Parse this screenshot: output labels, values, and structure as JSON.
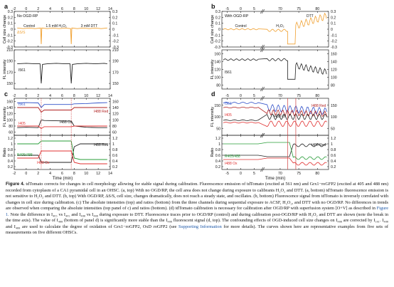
{
  "chart_data": [
    {
      "panel": "a",
      "type": "line",
      "title": "No OGD-RP",
      "ylabel": "Cell size change",
      "x_ticks": [
        -2,
        0,
        2,
        4,
        6,
        8,
        10,
        12,
        14
      ],
      "xlim": [
        -2,
        14
      ],
      "y_ticks": [
        -0.3,
        -0.2,
        -0.1,
        0.0,
        0.1,
        0.2,
        0.3
      ],
      "ylim": [
        -0.3,
        0.3
      ],
      "annotations": [
        "Control",
        "1.5 mM H₂O₂",
        "3 mM DTT"
      ],
      "series": [
        {
          "name": "ΔS/S",
          "color": "#f0a030",
          "x": [
            -1.5,
            -0.5,
            0.5,
            1.5,
            2.4,
            2.5,
            2.6,
            3.5,
            4.5,
            5.5,
            6.5,
            7.4,
            7.5,
            7.6,
            8.5,
            9.5,
            10.5,
            11.5,
            12.5,
            13.5
          ],
          "y": [
            0.02,
            0.01,
            0.02,
            0.01,
            0.02,
            -0.25,
            0.02,
            0.01,
            0.02,
            0.01,
            0.02,
            0.01,
            -0.25,
            0.02,
            0.01,
            0.02,
            0.01,
            0.02,
            0.01,
            0.02
          ]
        }
      ]
    },
    {
      "panel": "a-bottom",
      "type": "line",
      "ylabel": "FL intensity",
      "x_ticks": [
        -2,
        0,
        2,
        4,
        6,
        8,
        10,
        12,
        14
      ],
      "xlim": [
        -2,
        14
      ],
      "y_ticks": [
        150,
        170,
        190,
        210
      ],
      "ylim": [
        140,
        210
      ],
      "series": [
        {
          "name": "I561",
          "color": "#222222",
          "x": [
            -1.5,
            0,
            1.5,
            2.3,
            2.5,
            2.7,
            3.5,
            5,
            6.5,
            7.3,
            7.5,
            7.7,
            8.5,
            10,
            11.5,
            13,
            13.5
          ],
          "y": [
            185,
            186,
            185,
            185,
            150,
            184,
            185,
            186,
            185,
            185,
            150,
            184,
            185,
            186,
            185,
            186,
            185
          ]
        }
      ]
    },
    {
      "panel": "c",
      "type": "line",
      "ylabel": "FL intensity",
      "x_ticks": [
        -2,
        0,
        2,
        4,
        6,
        8,
        10,
        12,
        14
      ],
      "xlim": [
        -2,
        14
      ],
      "y_ticks": [
        60,
        80,
        100,
        120,
        140,
        160
      ],
      "ylim": [
        50,
        170
      ],
      "series": [
        {
          "name": "I561",
          "color": "#3050c8",
          "x": [
            -1.5,
            0,
            2,
            2.5,
            3,
            5,
            7.5,
            8,
            10,
            12,
            13.5
          ],
          "y": [
            155,
            156,
            155,
            140,
            150,
            150,
            150,
            152,
            153,
            155,
            156
          ]
        },
        {
          "name": "I488 Red",
          "color": "#b02020",
          "x": [
            -1.5,
            0,
            2,
            2.5,
            3,
            5,
            7.5,
            8,
            10,
            12,
            13.5
          ],
          "y": [
            140,
            140,
            140,
            125,
            132,
            132,
            132,
            140,
            140,
            140,
            140
          ]
        },
        {
          "name": "I488 Ox",
          "color": "#222222",
          "x": [
            -1.5,
            0,
            2,
            2.5,
            3,
            5,
            7.5,
            8,
            10,
            12,
            13.5
          ],
          "y": [
            75,
            76,
            75,
            100,
            98,
            97,
            96,
            80,
            76,
            75,
            75
          ]
        },
        {
          "name": "I405",
          "color": "#e03030",
          "x": [
            -1.5,
            0,
            2,
            2.5,
            3,
            5,
            7.5,
            8,
            10,
            12,
            13.5
          ],
          "y": [
            80,
            80,
            80,
            72,
            78,
            78,
            78,
            80,
            80,
            80,
            80
          ]
        }
      ]
    },
    {
      "panel": "c-bottom",
      "type": "line",
      "ylabel": "Ratio",
      "x_ticks": [
        -2,
        0,
        2,
        4,
        6,
        8,
        10,
        12,
        14
      ],
      "xlim": [
        -2,
        14
      ],
      "y_ticks": [
        0.2,
        0.4,
        0.6,
        0.8,
        1.0,
        1.2
      ],
      "ylim": [
        0.1,
        1.3
      ],
      "series": [
        {
          "name": "I488 Red",
          "color": "#222222",
          "x": [
            -1.5,
            0,
            2,
            2.5,
            5,
            7.5,
            8,
            9,
            11,
            13.5
          ],
          "y": [
            0.6,
            0.6,
            0.6,
            0.35,
            0.35,
            0.35,
            0.9,
            1.0,
            1.0,
            1.0
          ]
        },
        {
          "name": "R405/488",
          "color": "#2a9d3a",
          "x": [
            -1.5,
            0,
            2,
            2.5,
            5,
            7.5,
            8,
            9,
            11,
            13.5
          ],
          "y": [
            1.0,
            1.0,
            1.0,
            1.1,
            1.1,
            1.1,
            0.5,
            0.45,
            0.45,
            0.45
          ]
        },
        {
          "name": "I488 Ox",
          "color": "#e03030",
          "x": [
            -1.5,
            0,
            2,
            2.5,
            5,
            7.5,
            8,
            9,
            11,
            13.5
          ],
          "y": [
            0.5,
            0.5,
            0.5,
            0.75,
            0.75,
            0.75,
            0.35,
            0.3,
            0.3,
            0.3
          ]
        }
      ]
    },
    {
      "panel": "b",
      "type": "line",
      "title": "With OGD-RP",
      "ylabel": "Cell size change",
      "x_ticks": [
        -5,
        0,
        5,
        70,
        75,
        80
      ],
      "broken_axis": true,
      "y_ticks": [
        -0.3,
        -0.2,
        -0.1,
        0.0,
        0.1,
        0.2,
        0.3
      ],
      "ylim": [
        -0.3,
        0.3
      ],
      "annotations": [
        "Control",
        "H₂O₂",
        "DTT"
      ],
      "series": [
        {
          "name": "ΔS/S",
          "color": "#f0a030"
        }
      ]
    },
    {
      "panel": "b-bottom",
      "type": "line",
      "ylabel": "FL intensity",
      "x_ticks": [
        -5,
        0,
        5,
        70,
        75,
        80
      ],
      "broken_axis": true,
      "y_ticks": [
        80,
        100,
        120,
        140,
        160
      ],
      "ylim": [
        70,
        170
      ],
      "series": [
        {
          "name": "I561",
          "color": "#222222"
        }
      ]
    },
    {
      "panel": "d",
      "type": "line",
      "ylabel": "FL intensity",
      "x_ticks": [
        -5,
        0,
        5,
        70,
        75,
        80
      ],
      "broken_axis": true,
      "y_ticks": [
        50,
        100,
        150
      ],
      "ylim": [
        20,
        180
      ],
      "series": [
        {
          "name": "I561",
          "color": "#3050c8"
        },
        {
          "name": "I488 Red",
          "color": "#b02020"
        },
        {
          "name": "I488 Ox",
          "color": "#222222"
        },
        {
          "name": "I405",
          "color": "#e03030"
        }
      ]
    },
    {
      "panel": "d-bottom",
      "type": "line",
      "ylabel": "Ratio",
      "xlabel": "Time (min)",
      "x_ticks": [
        -5,
        0,
        5,
        70,
        75,
        80
      ],
      "broken_axis": true,
      "y_ticks": [
        0.2,
        0.4,
        0.6,
        0.8,
        1.0,
        1.2
      ],
      "ylim": [
        0.1,
        1.3
      ],
      "series": [
        {
          "name": "I488 Red",
          "color": "#222222"
        },
        {
          "name": "R405/488",
          "color": "#2a9d3a"
        },
        {
          "name": "I488 Ox",
          "color": "#e03030"
        }
      ]
    }
  ],
  "figure": {
    "panel_labels": [
      "a",
      "b",
      "c",
      "d"
    ],
    "xlabel_left": "Time (min)",
    "xlabel_right": "Time (min)"
  },
  "caption": {
    "label": "Figure 4.",
    "text": "tdTomato corrects for changes in cell morphology allowing for stable signal during calibration. Fluorescence emission of tdTomato (excited at 561 nm) and Grx1−roGFP2 (excited at 405 and 488 nm) recorded from cytoplasm of a CA1 pyramidal cell in an OHSC. (a, top) With no OGD/RP, the cell area does not change during exposure to calibrants H₂O₂ and DTT. (a, bottom) tdTomato fluorescence emission is not sensitive to H₂O₂ and DTT. (b, top) With OGD/RP, ΔS/S, cell size, changes dramatically, does not reach a steady state, and oscillates. (b, bottom) Fluorescence signal from tdTomato is inversely correlated with changes in cell size during calibration. (c) The absolute intensities (top) and ratios (bottom) from the three channels during sequential exposure to ACSF, H₂O₂, and DTT with no OGD/RP. No differences in trends are observed when comparing the absolute intensities (top panel of c) and ratios (bottom). (d) tdTomato calibration is necessary for calibration after OGD/RP with superfusion system [O+V] as described in",
    "link_text": "Figure 1.",
    "text2": "Note the difference in I₄₀₅ vs I₄₀₅ and I₄₈₈ vs I₄₈₈ during exposure to DTT. Fluorescence traces prior to OGD/RP (control) and during calibration post-OGD/RP with H₂O₂ and DTT are shown (note the break in the time axis). The value of I₄₈₈ (bottom of panel d) is significantly more stable than the I₄₈₈ fluorescent signal (d, top). The confounding effects of OGD-induced cell size changes on I₄₈₈ are corrected by I₅₆₁. I₄₈₈ and I₄₈₈ are used to calculate the degree of oxidation of Grx1−roGFP2, OxD roGFP2 (see",
    "link2_text": "Supporting Information",
    "text3": "for more details). The curves shown here are representative examples from five sets of measurements on five different OHSCs."
  }
}
